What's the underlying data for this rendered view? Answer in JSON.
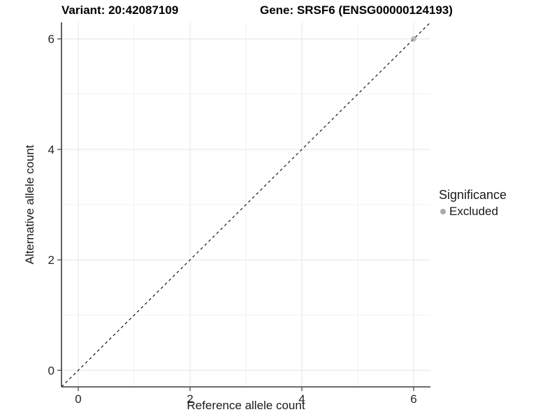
{
  "chart_data": {
    "type": "scatter",
    "title_variant": "Variant: 20:42087109",
    "title_gene": "Gene: SRSF6 (ENSG00000124193)",
    "xlabel": "Reference allele count",
    "ylabel": "Alternative allele count",
    "xlim": [
      -0.3,
      6.3
    ],
    "ylim": [
      -0.3,
      6.3
    ],
    "x_major_ticks": [
      0,
      2,
      4,
      6
    ],
    "x_minor_ticks": [
      1,
      3,
      5
    ],
    "y_major_ticks": [
      0,
      2,
      4,
      6
    ],
    "y_minor_ticks": [
      1,
      3,
      5
    ],
    "grid": "major+minor",
    "reference_line": {
      "slope": 1,
      "intercept": 0,
      "style": "dashed"
    },
    "series": [
      {
        "name": "Excluded",
        "points": [
          {
            "x": 6,
            "y": 6
          }
        ],
        "color": "#9e9e9e",
        "opacity": 0.65
      }
    ],
    "legend": {
      "title": "Significance",
      "position": "right",
      "entries": [
        {
          "label": "Excluded",
          "marker_color": "#a9a9a9"
        }
      ]
    }
  },
  "colors": {
    "background": "#ffffff",
    "grid_major": "#e4e4e4",
    "grid_minor": "#f1f1f1",
    "axis_line": "#3c3c3c",
    "tick_mark": "#3c3c3c",
    "tick_text": "#262626",
    "dashed_line": "#000000"
  }
}
